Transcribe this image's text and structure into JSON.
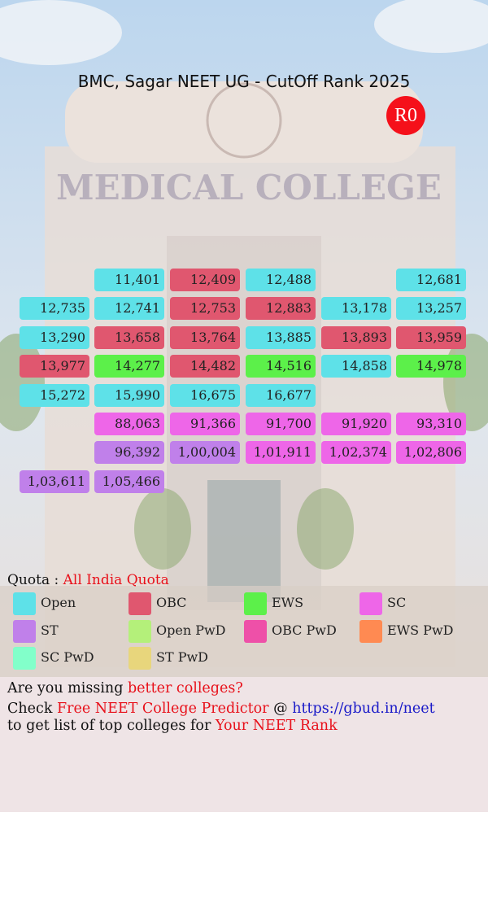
{
  "header": {
    "title": "BMC, Sagar NEET UG - CutOff Rank 2025",
    "badge": "R0"
  },
  "grid": {
    "rows": [
      [
        null,
        {
          "rank": "11,401",
          "color": "#5ee1e8"
        },
        {
          "rank": "12,409",
          "color": "#e0576f"
        },
        {
          "rank": "12,488",
          "color": "#5ee1e8"
        },
        null,
        {
          "rank": "12,681",
          "color": "#5ee1e8"
        }
      ],
      [
        {
          "rank": "12,735",
          "color": "#5ee1e8"
        },
        {
          "rank": "12,741",
          "color": "#5ee1e8"
        },
        {
          "rank": "12,753",
          "color": "#e0576f"
        },
        {
          "rank": "12,883",
          "color": "#e0576f"
        },
        {
          "rank": "13,178",
          "color": "#5ee1e8"
        },
        {
          "rank": "13,257",
          "color": "#5ee1e8"
        }
      ],
      [
        {
          "rank": "13,290",
          "color": "#5ee1e8"
        },
        {
          "rank": "13,658",
          "color": "#e0576f"
        },
        {
          "rank": "13,764",
          "color": "#e0576f"
        },
        {
          "rank": "13,885",
          "color": "#5ee1e8"
        },
        {
          "rank": "13,893",
          "color": "#e0576f"
        },
        {
          "rank": "13,959",
          "color": "#e0576f"
        }
      ],
      [
        {
          "rank": "13,977",
          "color": "#e0576f"
        },
        {
          "rank": "14,277",
          "color": "#5cf04a"
        },
        {
          "rank": "14,482",
          "color": "#e0576f"
        },
        {
          "rank": "14,516",
          "color": "#5cf04a"
        },
        {
          "rank": "14,858",
          "color": "#5ee1e8"
        },
        {
          "rank": "14,978",
          "color": "#5cf04a"
        }
      ],
      [
        {
          "rank": "15,272",
          "color": "#5ee1e8"
        },
        {
          "rank": "15,990",
          "color": "#5ee1e8"
        },
        {
          "rank": "16,675",
          "color": "#5ee1e8"
        },
        {
          "rank": "16,677",
          "color": "#5ee1e8"
        },
        null,
        null
      ],
      [
        null,
        {
          "rank": "88,063",
          "color": "#ee66e8"
        },
        {
          "rank": "91,366",
          "color": "#ee66e8"
        },
        {
          "rank": "91,700",
          "color": "#ee66e8"
        },
        {
          "rank": "91,920",
          "color": "#ee66e8"
        },
        {
          "rank": "93,310",
          "color": "#ee66e8"
        }
      ],
      [
        null,
        {
          "rank": "96,392",
          "color": "#c080ea"
        },
        {
          "rank": "1,00,004",
          "color": "#c080ea"
        },
        {
          "rank": "1,01,911",
          "color": "#ee66e8"
        },
        {
          "rank": "1,02,374",
          "color": "#ee66e8"
        },
        {
          "rank": "1,02,806",
          "color": "#ee66e8"
        }
      ],
      [
        {
          "rank": "1,03,611",
          "color": "#c080ea"
        },
        {
          "rank": "1,05,466",
          "color": "#c080ea"
        },
        null,
        null,
        null,
        null
      ]
    ]
  },
  "quota": {
    "label": "Quota :",
    "value": "All India Quota"
  },
  "legend": [
    {
      "label": "Open",
      "color": "#5ee1e8"
    },
    {
      "label": "OBC",
      "color": "#e0576f"
    },
    {
      "label": "EWS",
      "color": "#5cf04a"
    },
    {
      "label": "SC",
      "color": "#ee66e8"
    },
    {
      "label": "ST",
      "color": "#c080ea"
    },
    {
      "label": "Open PwD",
      "color": "#b4f07a"
    },
    {
      "label": "OBC PwD",
      "color": "#ee50a8"
    },
    {
      "label": "EWS PwD",
      "color": "#ff8a52"
    },
    {
      "label": "SC PwD",
      "color": "#82ffca"
    },
    {
      "label": "ST PwD",
      "color": "#e8d67c"
    }
  ],
  "footer": {
    "line1": [
      "Are you missing",
      "better colleges?"
    ],
    "line2": [
      "Check",
      "Free NEET College Predictor",
      "@",
      "https://gbud.in/neet"
    ],
    "line3": [
      "to get list of top colleges for",
      "Your NEET Rank"
    ]
  }
}
